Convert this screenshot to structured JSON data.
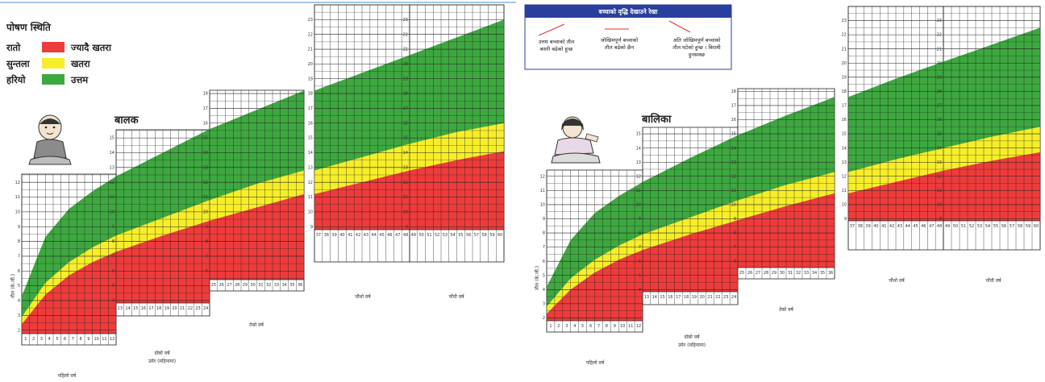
{
  "legend": {
    "title": "पोषण स्थिति",
    "items": [
      {
        "label": "रातो",
        "meaning": "ज्यादै खतरा",
        "color": "#ee3b3b"
      },
      {
        "label": "सुन्तला",
        "meaning": "खतरा",
        "color": "#f7ee2a"
      },
      {
        "label": "हरियो",
        "meaning": "उत्तम",
        "color": "#3da83f"
      }
    ]
  },
  "info_box": {
    "title": "बच्चाको वृद्धि देखाउने रेखा",
    "notes": [
      {
        "line1": "उत्तम बच्चाको तौल",
        "line2": "बसरी बढेको हुन्छ"
      },
      {
        "line1": "जोखिमपूर्ण बच्चाको",
        "line2": "तौल बढेको छैन"
      },
      {
        "line1": "अति जोखिमपूर्ण बच्चाको",
        "line2": "तौल घटेको हुन्छ । बिरामी",
        "line3": "हुनसक्छ"
      }
    ]
  },
  "colors": {
    "green": "#3da83f",
    "yellow": "#f7ee2a",
    "red": "#ee3b3b",
    "grid": "#222222",
    "info_header": "#2a3f9d"
  },
  "chart_data": [
    {
      "type": "area",
      "title": "बालक",
      "ylabel": "तौल (के.जी.)",
      "x_label": "महिना",
      "x": [
        0,
        3,
        6,
        9,
        12,
        18,
        24,
        30,
        36,
        42,
        48,
        54,
        60
      ],
      "ylim": [
        1,
        24
      ],
      "year_labels": [
        "पहिलो वर्ष",
        "दोस्रो वर्ष",
        "तेस्रो वर्ष",
        "चौथो वर्ष",
        "पाँचौ वर्ष"
      ],
      "sub_label": "उमेर (महिनामा)",
      "series": [
        {
          "name": "रातो",
          "values": [
            2.4,
            4.4,
            5.7,
            6.6,
            7.3,
            8.4,
            9.4,
            10.3,
            11.2,
            12.0,
            12.8,
            13.5,
            14.1
          ]
        },
        {
          "name": "सुन्तला",
          "values": [
            2.9,
            5.2,
            6.6,
            7.6,
            8.4,
            9.6,
            10.8,
            11.9,
            12.8,
            13.7,
            14.6,
            15.4,
            16.0
          ]
        },
        {
          "name": "हरियो",
          "values": [
            4.3,
            8.3,
            10.2,
            11.4,
            12.4,
            14.0,
            15.6,
            16.9,
            18.2,
            19.4,
            20.6,
            21.8,
            23.0
          ]
        }
      ]
    },
    {
      "type": "area",
      "title": "बालिका",
      "ylabel": "तौल (के.जी.)",
      "x_label": "महिना",
      "x": [
        0,
        3,
        6,
        9,
        12,
        18,
        24,
        30,
        36,
        42,
        48,
        54,
        60
      ],
      "ylim": [
        1,
        24
      ],
      "year_labels": [
        "पहिलो वर्ष",
        "दोस्रो वर्ष",
        "तेस्रो वर्ष",
        "चौथो वर्ष",
        "पाँचौ वर्ष"
      ],
      "sub_label": "उमेर (महिनामा)",
      "series": [
        {
          "name": "रातो",
          "values": [
            2.3,
            4.0,
            5.2,
            6.1,
            6.8,
            7.9,
            8.9,
            9.9,
            10.8,
            11.6,
            12.4,
            13.1,
            13.7
          ]
        },
        {
          "name": "सुन्तला",
          "values": [
            2.8,
            4.8,
            6.1,
            7.1,
            7.9,
            9.1,
            10.3,
            11.4,
            12.3,
            13.2,
            14.0,
            14.8,
            15.5
          ]
        },
        {
          "name": "हरियो",
          "values": [
            4.2,
            7.5,
            9.4,
            10.6,
            11.6,
            13.3,
            14.9,
            16.3,
            17.6,
            18.9,
            20.1,
            21.3,
            22.5
          ]
        }
      ]
    }
  ]
}
